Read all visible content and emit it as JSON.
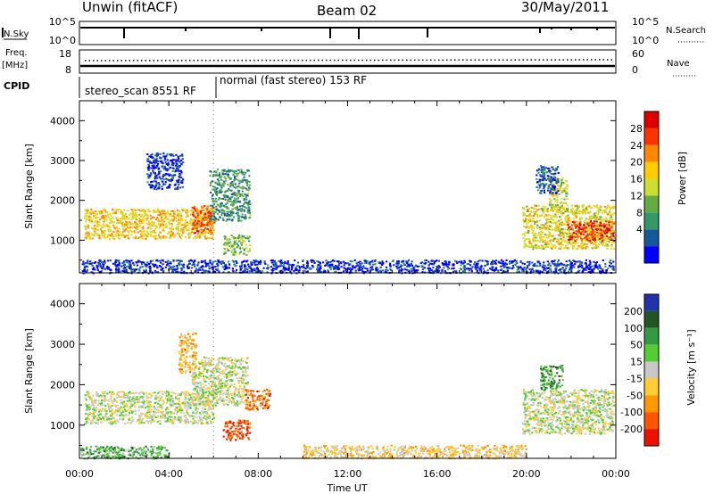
{
  "header": {
    "station": "Unwin (fitACF)",
    "beam": "Beam 02",
    "date": "30/May/2011"
  },
  "panels": {
    "nsky_label": "N.Sky",
    "nsky_ticks": [
      "10^5",
      "10^0"
    ],
    "nsearch_label": "N.Search",
    "nsearch_ticks": [
      "10^5",
      "10^0"
    ],
    "freq_label": "Freq.",
    "freq_unit": "[MHz]",
    "freq_ticks": [
      "18",
      "8"
    ],
    "nave_label": "Nave",
    "nave_ticks": [
      "60",
      "0"
    ],
    "cpid_label": "CPID",
    "cpid_segments": [
      "stereo_scan 8551 RF",
      "normal (fast stereo) 153 RF"
    ]
  },
  "colors": {
    "power_scale": [
      "#0000ff",
      "#17589a",
      "#339966",
      "#66aa44",
      "#ccdd33",
      "#ffcc00",
      "#ff8800",
      "#ff3300",
      "#dd0000"
    ],
    "velocity_scale": [
      "#2233aa",
      "#225522",
      "#339944",
      "#55cc33",
      "#c8c8c8",
      "#ffcc33",
      "#ff9900",
      "#ff5500",
      "#ee1100"
    ],
    "ground_scatter": "#c8c8c8"
  },
  "chart_data": [
    {
      "type": "heatmap",
      "name": "Power",
      "colorbar_label": "Power [dB]",
      "colorbar_ticks": [
        "28",
        "24",
        "20",
        "16",
        "12",
        "8",
        "4"
      ],
      "xlabel": "",
      "ylabel": "Slant Range [km]",
      "yticks": [
        "4000",
        "3000",
        "2000",
        "1000"
      ],
      "ylim": [
        180,
        4500
      ],
      "xlim": [
        0,
        24
      ],
      "regions": [
        {
          "t0": 0.2,
          "t1": 6.0,
          "r0": 1050,
          "r1": 1800,
          "level": 0.6
        },
        {
          "t0": 5.0,
          "t1": 6.0,
          "r0": 1200,
          "r1": 1900,
          "level": 0.8
        },
        {
          "t0": 5.8,
          "t1": 7.6,
          "r0": 1500,
          "r1": 2800,
          "level": 0.3
        },
        {
          "t0": 6.4,
          "t1": 7.6,
          "r0": 650,
          "r1": 1150,
          "level": 0.4
        },
        {
          "t0": 3.0,
          "t1": 4.6,
          "r0": 2300,
          "r1": 3200,
          "level": 0.1
        },
        {
          "t0": 19.8,
          "t1": 23.9,
          "r0": 800,
          "r1": 1900,
          "level": 0.55
        },
        {
          "t0": 21.8,
          "t1": 23.9,
          "r0": 1000,
          "r1": 1500,
          "level": 0.85
        },
        {
          "t0": 21.0,
          "t1": 21.8,
          "r0": 1700,
          "r1": 2600,
          "level": 0.5
        },
        {
          "t0": 20.4,
          "t1": 21.4,
          "r0": 2200,
          "r1": 2900,
          "level": 0.15
        },
        {
          "t0": 0.0,
          "t1": 23.9,
          "r0": 190,
          "r1": 520,
          "level": 0.1
        }
      ]
    },
    {
      "type": "heatmap",
      "name": "Velocity",
      "colorbar_label": "Velocity [m s⁻¹]",
      "colorbar_ticks": [
        "200",
        "100",
        "50",
        "15",
        "-15",
        "-50",
        "-100",
        "-200"
      ],
      "xlabel": "Time UT",
      "ylabel": "Slant Range [km]",
      "yticks": [
        "4000",
        "3000",
        "2000",
        "1000"
      ],
      "xticks": [
        "00:00",
        "04:00",
        "08:00",
        "12:00",
        "16:00",
        "20:00",
        "00:00"
      ],
      "ylim": [
        180,
        4500
      ],
      "xlim": [
        0,
        24
      ],
      "regions": [
        {
          "t0": 0.2,
          "t1": 6.0,
          "r0": 1050,
          "r1": 1850,
          "level": 0.5
        },
        {
          "t0": 5.0,
          "t1": 7.5,
          "r0": 1500,
          "r1": 2700,
          "level": 0.5
        },
        {
          "t0": 7.4,
          "t1": 8.5,
          "r0": 1400,
          "r1": 1900,
          "level": 0.8
        },
        {
          "t0": 6.4,
          "t1": 7.6,
          "r0": 650,
          "r1": 1150,
          "level": 0.85
        },
        {
          "t0": 4.4,
          "t1": 5.2,
          "r0": 2300,
          "r1": 3300,
          "level": 0.65
        },
        {
          "t0": 19.8,
          "t1": 23.9,
          "r0": 800,
          "r1": 1900,
          "level": 0.5
        },
        {
          "t0": 20.6,
          "t1": 21.6,
          "r0": 1900,
          "r1": 2500,
          "level": 0.3
        },
        {
          "t0": 0.0,
          "t1": 4.0,
          "r0": 190,
          "r1": 500,
          "level": 0.35
        },
        {
          "t0": 10.0,
          "t1": 20.0,
          "r0": 190,
          "r1": 520,
          "level": 0.6
        }
      ]
    }
  ]
}
